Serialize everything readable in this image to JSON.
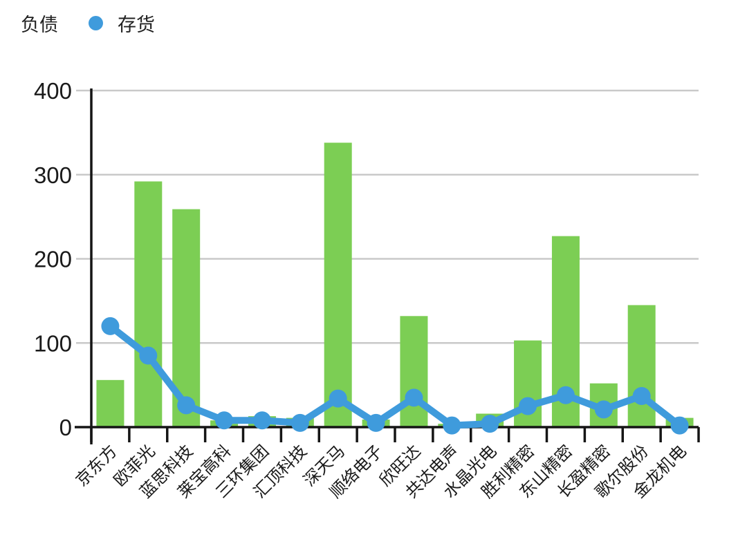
{
  "legend": {
    "bar_label": "负债",
    "line_label": "存货"
  },
  "colors": {
    "bar": "#7CCE54",
    "line": "#3F9BDC",
    "grid": "#C9C9C9",
    "axis": "#151515",
    "label_text": "#1A1A1A"
  },
  "chart_data": {
    "type": "bar",
    "combo": "bar series + line series overlay",
    "title": "",
    "xlabel": "",
    "ylabel": "",
    "ylim": [
      0,
      400
    ],
    "yticks": [
      0,
      100,
      200,
      300,
      400
    ],
    "grid": true,
    "legend_position": "top-left",
    "categories": [
      "京东方",
      "欧菲光",
      "蓝思科技",
      "莱宝高科",
      "三环集团",
      "汇顶科技",
      "深天马",
      "顺络电子",
      "欣旺达",
      "共达电声",
      "水晶光电",
      "胜利精密",
      "东山精密",
      "长盈精密",
      "歌尔股份",
      "金龙机电"
    ],
    "series": [
      {
        "name": "负债",
        "type": "bar",
        "color": "#7CCE54",
        "values": [
          56,
          292,
          259,
          8,
          13,
          11,
          338,
          9,
          132,
          4,
          16,
          103,
          227,
          52,
          145,
          11
        ]
      },
      {
        "name": "存货",
        "type": "line",
        "color": "#3F9BDC",
        "values": [
          120,
          85,
          26,
          8,
          8,
          5,
          34,
          5,
          35,
          2,
          4,
          25,
          38,
          21,
          37,
          2
        ]
      }
    ]
  }
}
